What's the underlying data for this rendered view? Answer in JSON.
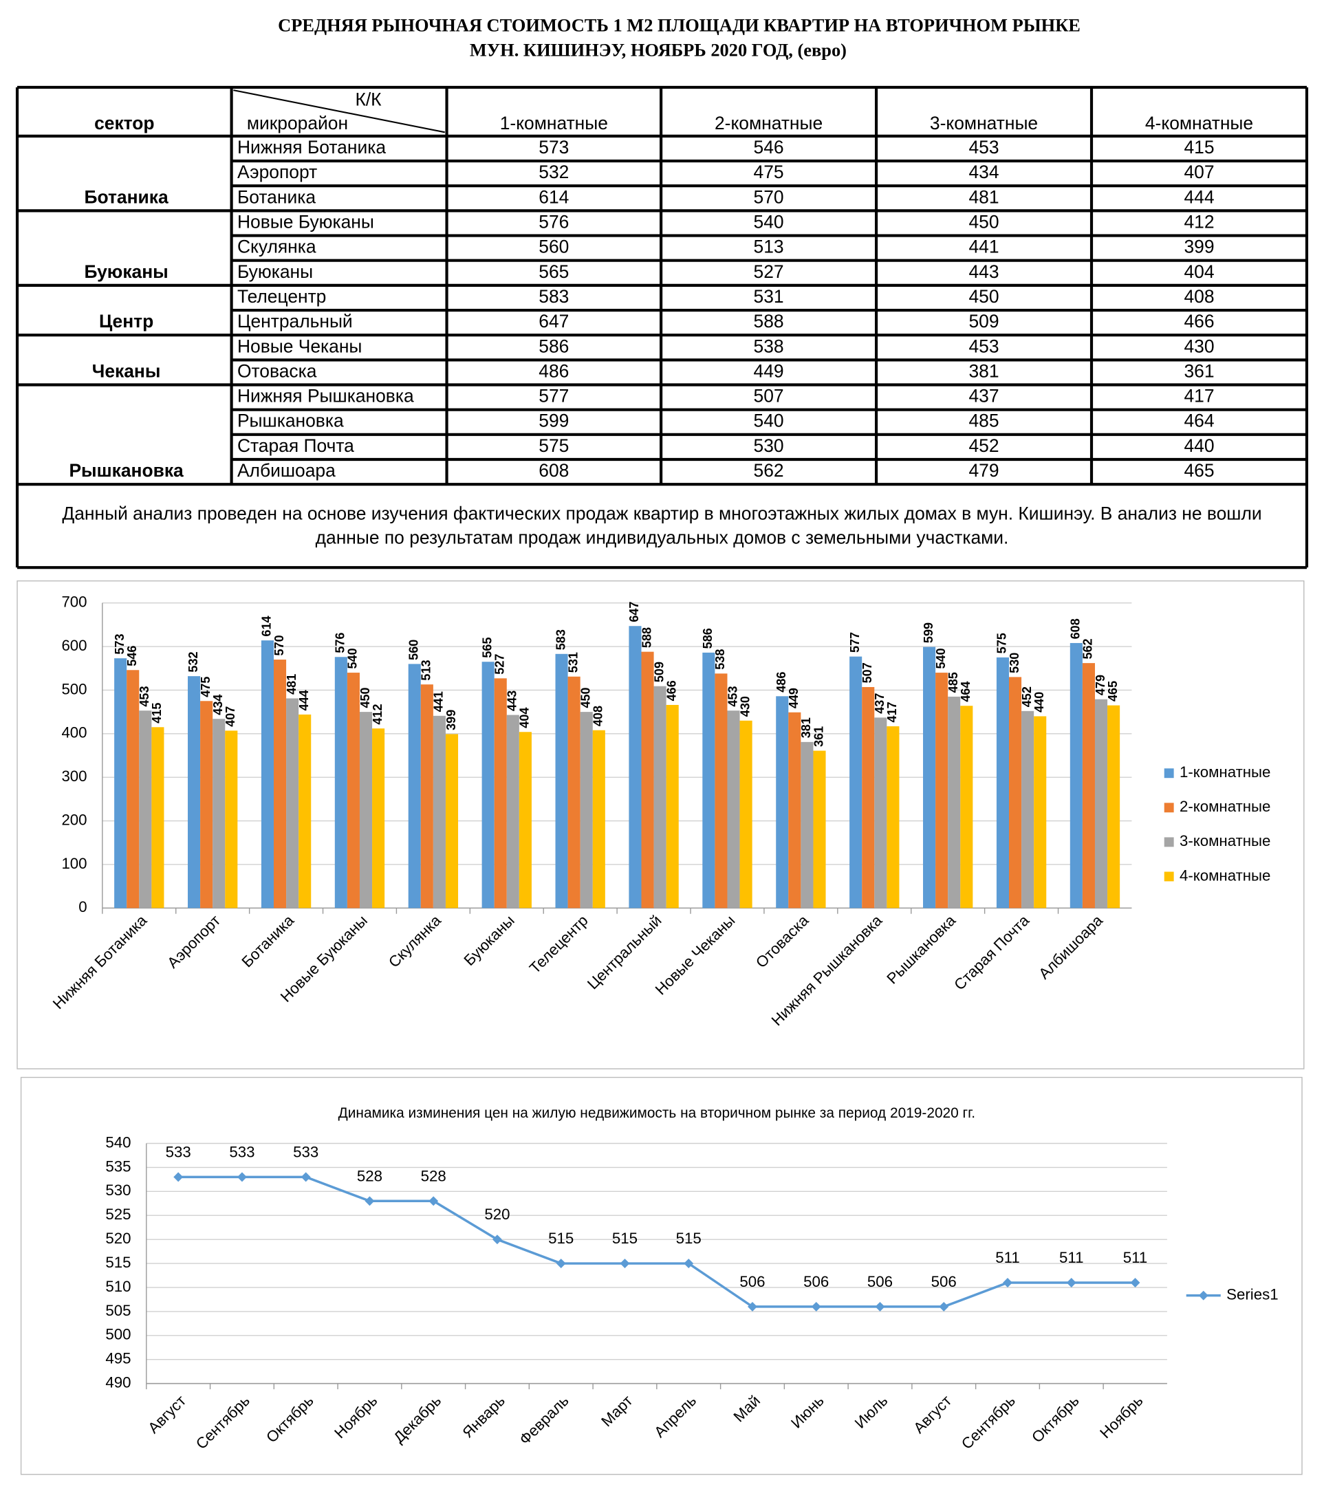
{
  "header": {
    "title_line1": "СРЕДНЯЯ  РЫНОЧНАЯ  СТОИМОСТЬ  1 М2  ПЛОЩАДИ  КВАРТИР НА ВТОРИЧНОМ РЫНКЕ",
    "title_line2": "МУН.  КИШИНЭУ, НОЯБРЬ 2020 ГОД, (евро)"
  },
  "table": {
    "col_sector": "сектор",
    "col_kk": "К/К",
    "col_micro": "микрорайон",
    "columns": [
      "1-комнатные",
      "2-комнатные",
      "3-комнатные",
      "4-комнатные"
    ],
    "groups": [
      {
        "sector": "Ботаника",
        "rows": [
          {
            "name": "Нижняя Ботаника",
            "values": [
              573,
              546,
              453,
              415
            ]
          },
          {
            "name": "Аэропорт",
            "values": [
              532,
              475,
              434,
              407
            ]
          },
          {
            "name": "Ботаника",
            "values": [
              614,
              570,
              481,
              444
            ]
          }
        ]
      },
      {
        "sector": "Буюканы",
        "rows": [
          {
            "name": "Новые Буюканы",
            "values": [
              576,
              540,
              450,
              412
            ]
          },
          {
            "name": "Скулянка",
            "values": [
              560,
              513,
              441,
              399
            ]
          },
          {
            "name": "Буюканы",
            "values": [
              565,
              527,
              443,
              404
            ]
          }
        ]
      },
      {
        "sector": "Центр",
        "rows": [
          {
            "name": "Телецентр",
            "values": [
              583,
              531,
              450,
              408
            ]
          },
          {
            "name": "Центральный",
            "values": [
              647,
              588,
              509,
              466
            ]
          }
        ]
      },
      {
        "sector": "Чеканы",
        "rows": [
          {
            "name": "Новые Чеканы",
            "values": [
              586,
              538,
              453,
              430
            ]
          },
          {
            "name": "Отоваска",
            "values": [
              486,
              449,
              381,
              361
            ]
          }
        ]
      },
      {
        "sector": "Рышкановка",
        "rows": [
          {
            "name": "Нижняя Рышкановка",
            "values": [
              577,
              507,
              437,
              417
            ]
          },
          {
            "name": "Рышкановка",
            "values": [
              599,
              540,
              485,
              464
            ]
          },
          {
            "name": "Старая Почта",
            "values": [
              575,
              530,
              452,
              440
            ]
          },
          {
            "name": "Албишоара",
            "values": [
              608,
              562,
              479,
              465
            ]
          }
        ]
      }
    ],
    "note_line1": "Данный анализ проведен на основе изучения фактических продаж квартир в многоэтажных жилых домах в мун. Кишинэу. В анализ не вошли",
    "note_line2": "данные по результатам  продаж индивидуальных домов с земельными участками."
  },
  "chart_data": [
    {
      "type": "bar",
      "categories": [
        "Нижняя Ботаника",
        "Аэропорт",
        "Ботаника",
        "Новые Буюканы",
        "Скулянка",
        "Буюканы",
        "Телецентр",
        "Центральный",
        "Новые Чеканы",
        "Отоваска",
        "Нижняя Рышкановка",
        "Рышкановка",
        "Старая Почта",
        "Албишоара"
      ],
      "series": [
        {
          "name": "1-комнатные",
          "color": "#5b9bd5",
          "values": [
            573,
            532,
            614,
            576,
            560,
            565,
            583,
            647,
            586,
            486,
            577,
            599,
            575,
            608
          ]
        },
        {
          "name": "2-комнатные",
          "color": "#ed7d31",
          "values": [
            546,
            475,
            570,
            540,
            513,
            527,
            531,
            588,
            538,
            449,
            507,
            540,
            530,
            562
          ]
        },
        {
          "name": "3-комнатные",
          "color": "#a5a5a5",
          "values": [
            453,
            434,
            481,
            450,
            441,
            443,
            450,
            509,
            453,
            381,
            437,
            485,
            452,
            479
          ]
        },
        {
          "name": "4-комнатные",
          "color": "#ffc000",
          "values": [
            415,
            407,
            444,
            412,
            399,
            404,
            408,
            466,
            430,
            361,
            417,
            464,
            440,
            465
          ]
        }
      ],
      "ylim": [
        0,
        700
      ],
      "yticks": [
        0,
        100,
        200,
        300,
        400,
        500,
        600,
        700
      ],
      "grid": true,
      "legend": "right"
    },
    {
      "type": "line",
      "title": "Динамика изминения цен на жилую недвижимость на вторичном рынке за период 2019-2020 гг.",
      "categories": [
        "Август",
        "Сентябрь",
        "Октябрь",
        "Ноябрь",
        "Декабрь",
        "Январь",
        "Февраль",
        "Март",
        "Апрель",
        "Май",
        "Июнь",
        "Июль",
        "Август",
        "Сентябрь",
        "Октябрь",
        "Ноябрь"
      ],
      "series": [
        {
          "name": "Series1",
          "color": "#5b9bd5",
          "values": [
            533,
            533,
            533,
            528,
            528,
            520,
            515,
            515,
            515,
            506,
            506,
            506,
            506,
            511,
            511,
            511
          ]
        }
      ],
      "ylim": [
        490,
        540
      ],
      "yticks": [
        490,
        495,
        500,
        505,
        510,
        515,
        520,
        525,
        530,
        535,
        540
      ],
      "grid": true,
      "legend": "right"
    }
  ]
}
